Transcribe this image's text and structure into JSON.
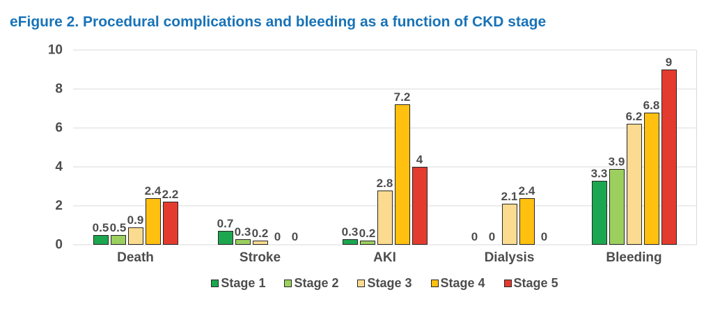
{
  "title": "eFigure 2. Procedural complications and bleeding as a function of CKD stage",
  "colors": {
    "title": "#1873B8",
    "text": "#4D4D4D",
    "grid": "#D9D9D9",
    "bar_border": "#262626"
  },
  "chart_data": {
    "type": "bar",
    "title": "eFigure 2. Procedural complications and bleeding as a function of CKD stage",
    "categories": [
      "Death",
      "Stroke",
      "AKI",
      "Dialysis",
      "Bleeding"
    ],
    "series": [
      {
        "name": "Stage 1",
        "color": "#1CA64F",
        "values": [
          0.5,
          0.7,
          0.3,
          0,
          3.3
        ]
      },
      {
        "name": "Stage 2",
        "color": "#9CD05E",
        "values": [
          0.5,
          0.3,
          0.2,
          0,
          3.9
        ]
      },
      {
        "name": "Stage 3",
        "color": "#FADB8F",
        "values": [
          0.9,
          0.2,
          2.8,
          2.1,
          6.2
        ]
      },
      {
        "name": "Stage 4",
        "color": "#FFC010",
        "values": [
          2.4,
          0,
          7.2,
          2.4,
          6.8
        ]
      },
      {
        "name": "Stage 5",
        "color": "#E33B2E",
        "values": [
          2.2,
          0,
          4,
          0,
          9
        ]
      }
    ],
    "xlabel": "",
    "ylabel": "",
    "ylim": [
      0,
      10
    ],
    "yticks": [
      0,
      2,
      4,
      6,
      8,
      10
    ],
    "grid": true,
    "data_labels": true,
    "legend_position": "bottom"
  }
}
